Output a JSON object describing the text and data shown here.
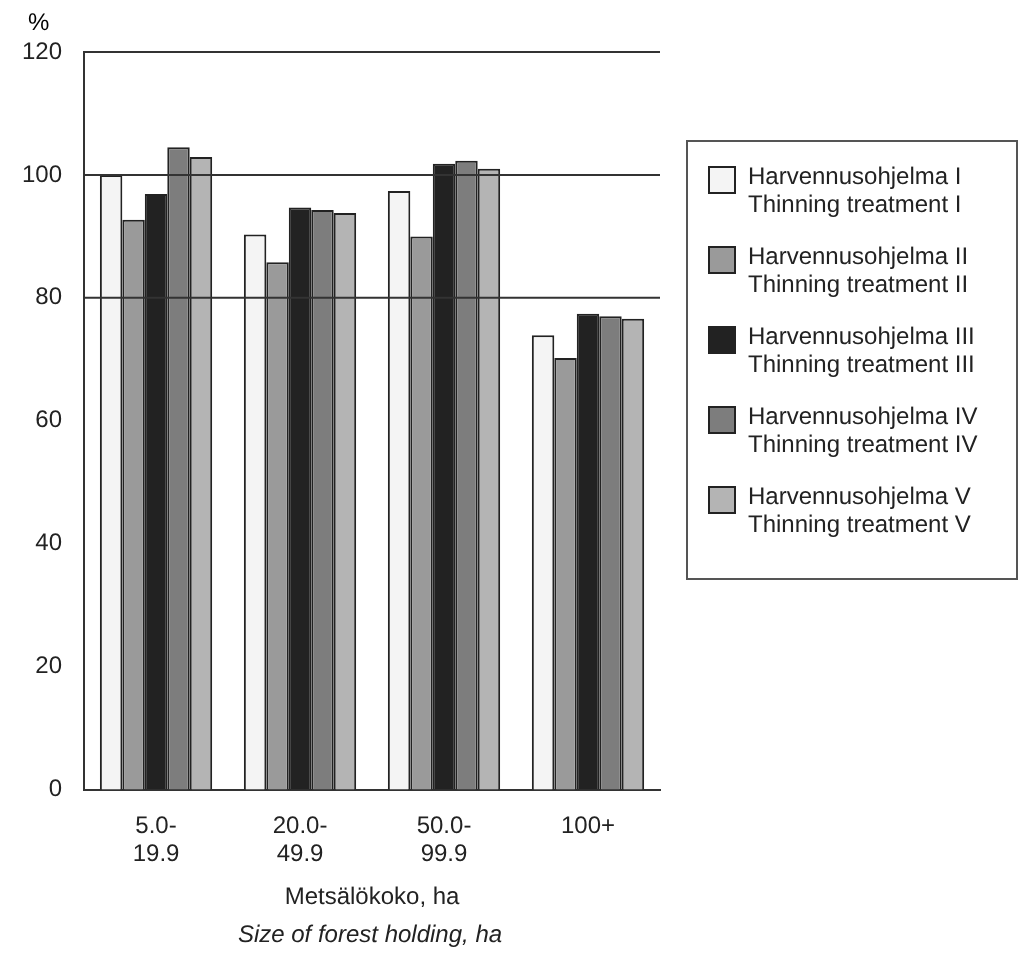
{
  "chart_data": {
    "type": "bar",
    "xlabel": "Metsälökoko, ha",
    "ylabel": "%",
    "annotations": [
      "Size of forest holding, ha"
    ],
    "categories": [
      "5.0-19.9",
      "20.0-49.9",
      "50.0-99.9",
      "100+"
    ],
    "series": [
      {
        "name": "Harvennusohjelma I\nThinning treatment I",
        "color": "#f4f4f4",
        "values": [
          100,
          90.3,
          97.4,
          73.9
        ]
      },
      {
        "name": "Harvennusohjelma II\nThinning treatment II",
        "color": "#9a9a9a",
        "values": [
          92.7,
          85.8,
          90,
          70.2
        ]
      },
      {
        "name": "Harvennusohjelma III\nThinning treatment III",
        "color": "#222222",
        "values": [
          96.9,
          94.7,
          101.8,
          77.4
        ]
      },
      {
        "name": "Harvennusohjelma IV\nThinning treatment IV",
        "color": "#7d7d7d",
        "values": [
          104.5,
          94.3,
          102.3,
          77
        ]
      },
      {
        "name": "Harvennusohjelma V\nThinning treatment V",
        "color": "#b4b4b4",
        "values": [
          102.9,
          93.8,
          101,
          76.6
        ]
      }
    ],
    "ylim": [
      0,
      120
    ],
    "yticks": [
      0,
      20,
      40,
      60,
      80,
      100,
      120
    ],
    "ref_lines": [
      {
        "axis": "y",
        "value": 100
      },
      {
        "axis": "y",
        "value": 80
      }
    ],
    "legend": "right",
    "grid": false
  }
}
